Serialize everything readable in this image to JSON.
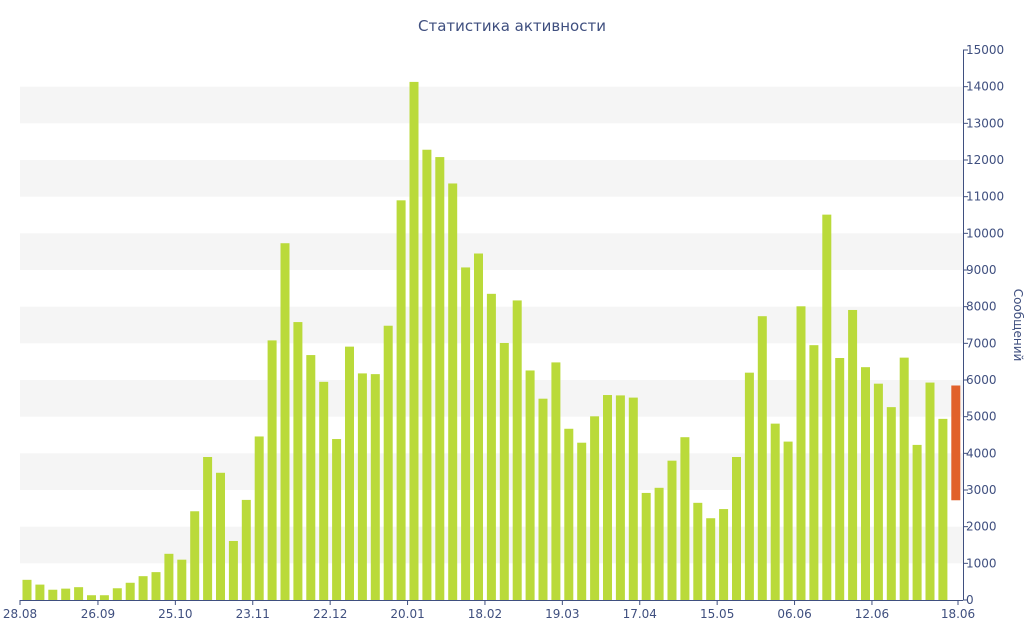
{
  "chart_data": {
    "type": "bar",
    "title": "Статистика активности",
    "xlabel": "",
    "ylabel": "Сообщений",
    "ylim": [
      0,
      15000
    ],
    "y_ticks": [
      0,
      1000,
      2000,
      3000,
      4000,
      5000,
      6000,
      7000,
      8000,
      9000,
      10000,
      11000,
      12000,
      13000,
      14000,
      15000
    ],
    "x_tick_labels": [
      {
        "label": "28.08",
        "index": 0
      },
      {
        "label": "26.09",
        "index": 6
      },
      {
        "label": "25.10",
        "index": 12
      },
      {
        "label": "23.11",
        "index": 18
      },
      {
        "label": "22.12",
        "index": 24
      },
      {
        "label": "20.01",
        "index": 30
      },
      {
        "label": "18.02",
        "index": 36
      },
      {
        "label": "19.03",
        "index": 42
      },
      {
        "label": "17.04",
        "index": 48
      },
      {
        "label": "15.05",
        "index": 54
      },
      {
        "label": "06.06",
        "index": 60
      },
      {
        "label": "12.06",
        "index": 66
      },
      {
        "label": "18.06",
        "index": 72
      }
    ],
    "values": [
      550,
      420,
      280,
      310,
      350,
      130,
      130,
      320,
      470,
      650,
      760,
      1260,
      1100,
      2420,
      3900,
      3470,
      1610,
      2730,
      4460,
      7080,
      9730,
      7580,
      6680,
      5950,
      4390,
      6910,
      6180,
      6160,
      7480,
      10900,
      14130,
      12280,
      12080,
      11360,
      9070,
      9450,
      8350,
      7010,
      8170,
      6260,
      5490,
      6480,
      4670,
      4290,
      5010,
      5590,
      5580,
      5520,
      2920,
      3060,
      3800,
      4440,
      2650,
      2230,
      2480,
      3900,
      6200,
      7740,
      4810,
      4320,
      8010,
      6950,
      10510,
      6600,
      7910,
      6350,
      5900,
      5260,
      6610,
      4230,
      5930,
      4940
    ],
    "highlight": {
      "index": 72,
      "low": 2720,
      "high": 5850
    },
    "grid": "alternating horizontal bands",
    "colors": {
      "bar": "#bada3a",
      "highlight": "#e1612b",
      "band": "#f5f5f5",
      "axis": "#3f4f7f"
    }
  }
}
